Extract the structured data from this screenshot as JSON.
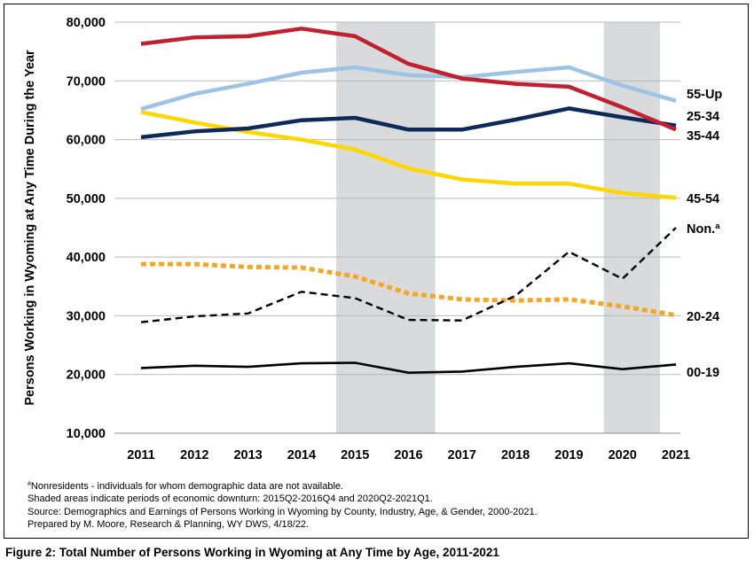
{
  "chart_data": {
    "type": "line",
    "title": "",
    "ylabel": "Persons Working in Wyoming at Any Time During the Year",
    "xlabel": "",
    "x": [
      "2011",
      "2012",
      "2013",
      "2014",
      "2015",
      "2016",
      "2017",
      "2018",
      "2019",
      "2020",
      "2021"
    ],
    "ylim": [
      10000,
      80000
    ],
    "yticks": [
      "10,000",
      "20,000",
      "30,000",
      "40,000",
      "50,000",
      "60,000",
      "70,000",
      "80,000"
    ],
    "ytick_values": [
      10000,
      20000,
      30000,
      40000,
      50000,
      60000,
      70000,
      80000
    ],
    "grid": "horizontal",
    "recessions": [
      [
        2014.65,
        2016.5
      ],
      [
        2019.65,
        2020.7
      ]
    ],
    "series": [
      {
        "name": "55-Up",
        "color": "#9dc3e6",
        "style": "solid",
        "values": [
          65200,
          67800,
          69500,
          71400,
          72300,
          71000,
          70600,
          71500,
          72300,
          69200,
          66600
        ]
      },
      {
        "name": "25-34",
        "color": "#0d2a5a",
        "style": "solid",
        "values": [
          60400,
          61400,
          61900,
          63300,
          63700,
          61700,
          61700,
          63400,
          65300,
          63800,
          62400
        ]
      },
      {
        "name": "35-44",
        "color": "#c0202f",
        "style": "solid",
        "values": [
          76300,
          77400,
          77600,
          78900,
          77600,
          72900,
          70400,
          69500,
          69000,
          65500,
          61700
        ]
      },
      {
        "name": "45-54",
        "color": "#ffd700",
        "style": "solid",
        "values": [
          64700,
          62900,
          61300,
          60000,
          58300,
          55100,
          53200,
          52500,
          52500,
          50900,
          50100
        ]
      },
      {
        "name": "Non.ª",
        "color": "#000000",
        "style": "dashed",
        "values": [
          28900,
          29900,
          30400,
          34100,
          33000,
          29300,
          29200,
          33400,
          40900,
          36300,
          45000
        ]
      },
      {
        "name": "20-24",
        "color": "#f5a623",
        "style": "dotted",
        "values": [
          38800,
          38800,
          38300,
          38200,
          36700,
          33800,
          32800,
          32600,
          32800,
          31600,
          30100
        ]
      },
      {
        "name": "00-19",
        "color": "#000000",
        "style": "solid",
        "values": [
          21100,
          21500,
          21300,
          21900,
          22000,
          20300,
          20500,
          21300,
          21900,
          20900,
          21700
        ]
      }
    ]
  },
  "notes": {
    "footnote_sup": "a",
    "footnote": "Nonresidents - individuals for whom demographic data are not available.",
    "shaded": "Shaded areas indicate periods of economic downturn: 2015Q2-2016Q4 and 2020Q2-2021Q1.",
    "source": "Source: Demographics and Earnings of Persons Working in Wyoming by County, Industry, Age, & Gender, 2000-2021.",
    "prepared": "Prepared by M. Moore, Research & Planning, WY DWS, 4/18/22."
  },
  "caption": "Figure 2: Total Number of Persons Working in Wyoming at Any Time by Age, 2011-2021",
  "colors": {
    "grid": "#b8b8b8",
    "recession": "#d9dadb"
  }
}
